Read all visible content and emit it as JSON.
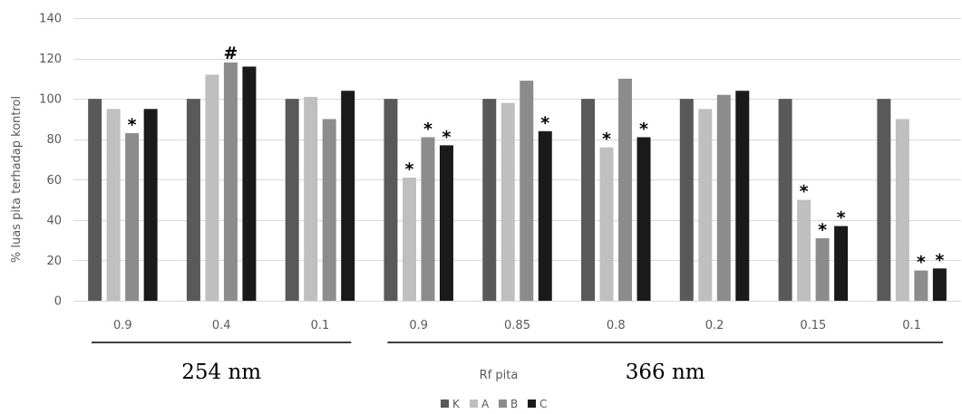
{
  "chart_data": {
    "type": "bar",
    "title": "",
    "ylabel": "% luas pita terhadap kontrol",
    "xlabel": "Rf pita",
    "ylim": [
      0,
      140
    ],
    "yticks": [
      0,
      20,
      40,
      60,
      80,
      100,
      120,
      140
    ],
    "grid": true,
    "legend_position": "bottom",
    "categories": [
      "0.9",
      "0.4",
      "0.1",
      "0.9",
      "0.85",
      "0.8",
      "0.2",
      "0.15",
      "0.1"
    ],
    "groups": [
      {
        "label": "254 nm",
        "categories": [
          "0.9",
          "0.4",
          "0.1"
        ]
      },
      {
        "label": "366 nm",
        "categories": [
          "0.9",
          "0.85",
          "0.8",
          "0.2",
          "0.15",
          "0.1"
        ]
      }
    ],
    "series": [
      {
        "name": "K",
        "color": "#595959",
        "values": [
          100,
          100,
          100,
          100,
          100,
          100,
          100,
          100,
          100
        ]
      },
      {
        "name": "A",
        "color": "#bfbfbf",
        "values": [
          95,
          112,
          101,
          61,
          98,
          76,
          95,
          50,
          90
        ]
      },
      {
        "name": "B",
        "color": "#8c8c8c",
        "values": [
          83,
          118,
          90,
          81,
          109,
          110,
          102,
          31,
          15
        ]
      },
      {
        "name": "C",
        "color": "#1a1a1a",
        "values": [
          95,
          116,
          104,
          77,
          84,
          81,
          104,
          37,
          16
        ]
      }
    ],
    "annotations": [
      {
        "text": "*",
        "category_index": 0,
        "series": "B"
      },
      {
        "text": "#",
        "category_index": 1,
        "series": "B"
      },
      {
        "text": "*",
        "category_index": 3,
        "series": "A"
      },
      {
        "text": "*",
        "category_index": 3,
        "series": "B"
      },
      {
        "text": "*",
        "category_index": 3,
        "series": "C"
      },
      {
        "text": "*",
        "category_index": 4,
        "series": "C"
      },
      {
        "text": "*",
        "category_index": 5,
        "series": "A"
      },
      {
        "text": "*",
        "category_index": 5,
        "series": "C"
      },
      {
        "text": "*",
        "category_index": 7,
        "series": "A"
      },
      {
        "text": "*",
        "category_index": 7,
        "series": "B"
      },
      {
        "text": "*",
        "category_index": 7,
        "series": "C"
      },
      {
        "text": "*",
        "category_index": 8,
        "series": "B"
      },
      {
        "text": "*",
        "category_index": 8,
        "series": "C"
      }
    ]
  }
}
